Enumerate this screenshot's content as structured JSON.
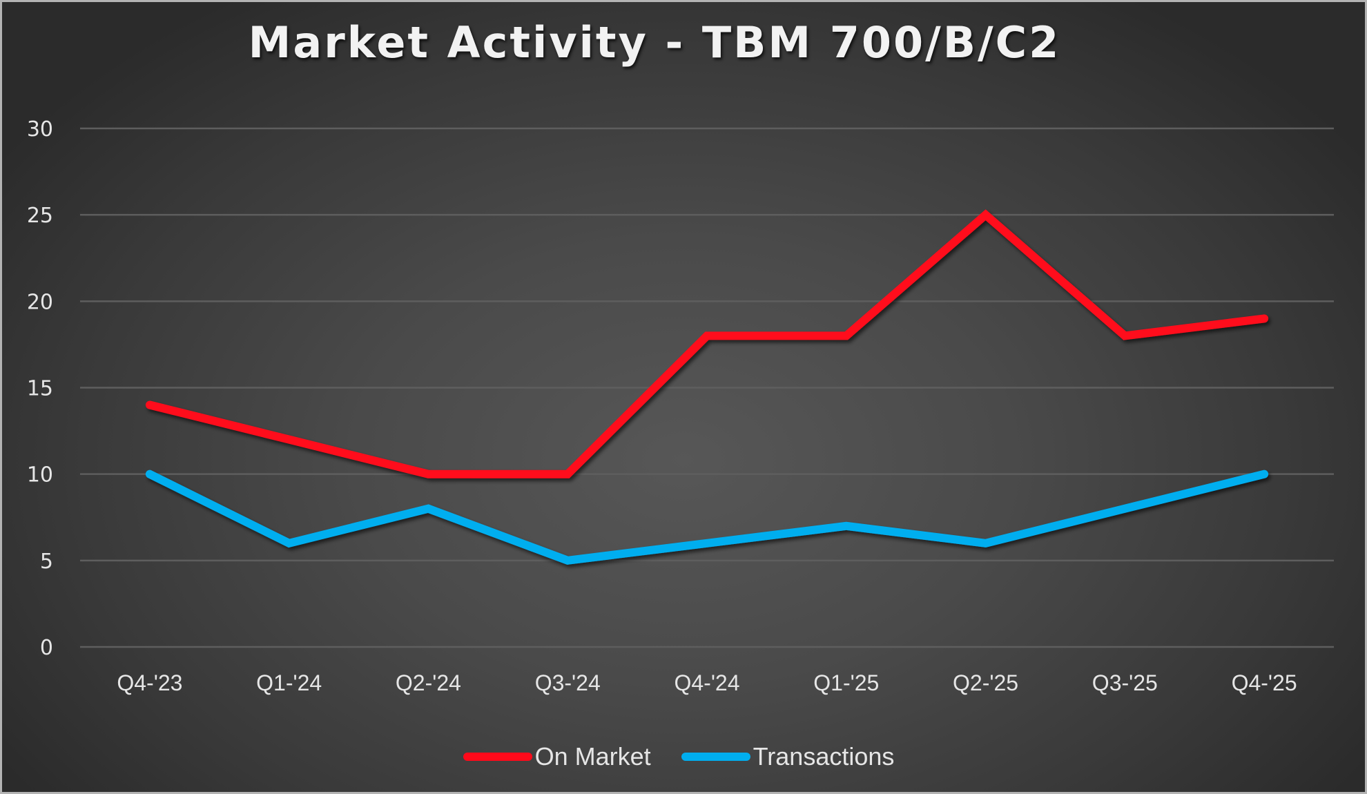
{
  "title": "Market Activity - TBM 700/B/C2",
  "colors": {
    "on_market": "#FF0A1A",
    "transactions": "#00AEEF",
    "gridline": "#5e5e5e",
    "text": "#e6e6e6"
  },
  "legend": {
    "items": [
      {
        "label": "On Market",
        "color": "#FF0A1A"
      },
      {
        "label": "Transactions",
        "color": "#00AEEF"
      }
    ]
  },
  "chart_data": {
    "type": "line",
    "title": "Market Activity - TBM 700/B/C2",
    "xlabel": "",
    "ylabel": "",
    "categories": [
      "Q4-'23",
      "Q1-'24",
      "Q2-'24",
      "Q3-'24",
      "Q4-'24",
      "Q1-'25",
      "Q2-'25",
      "Q3-'25",
      "Q4-'25"
    ],
    "series": [
      {
        "name": "On Market",
        "color": "#FF0A1A",
        "values": [
          14,
          12,
          10,
          10,
          18,
          18,
          25,
          18,
          19
        ]
      },
      {
        "name": "Transactions",
        "color": "#00AEEF",
        "values": [
          10,
          6,
          8,
          5,
          6,
          7,
          6,
          8,
          10
        ]
      }
    ],
    "ylim": [
      0,
      30
    ],
    "yticks": [
      0,
      5,
      10,
      15,
      20,
      25,
      30
    ],
    "grid": {
      "horizontal": true,
      "vertical": false
    },
    "legend_position": "bottom"
  }
}
